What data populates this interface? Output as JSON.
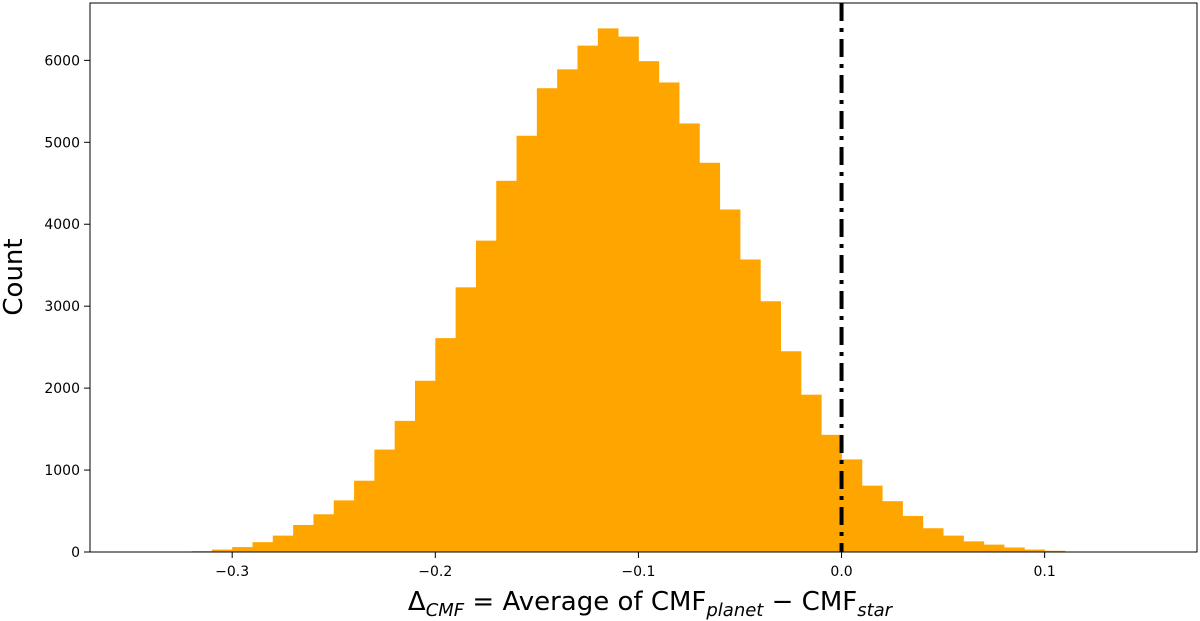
{
  "chart_data": {
    "type": "bar",
    "title": "",
    "xlabel": {
      "main": "Δ",
      "main_sub": "CMF",
      "mid": " = Average of CMF",
      "mid_sub": "planet",
      "dash": " −  CMF",
      "end_sub": "star"
    },
    "ylabel": "Count",
    "xlim": [
      -0.37,
      0.175
    ],
    "ylim": [
      0,
      6700
    ],
    "bar_color": "#ffa500",
    "bin_width": 0.01,
    "bin_starts": [
      -0.33,
      -0.32,
      -0.31,
      -0.3,
      -0.29,
      -0.28,
      -0.27,
      -0.26,
      -0.25,
      -0.24,
      -0.23,
      -0.22,
      -0.21,
      -0.2,
      -0.19,
      -0.18,
      -0.17,
      -0.16,
      -0.15,
      -0.14,
      -0.13,
      -0.12,
      -0.11,
      -0.1,
      -0.09,
      -0.08,
      -0.07,
      -0.06,
      -0.05,
      -0.04,
      -0.03,
      -0.02,
      -0.01,
      0.0,
      0.01,
      0.02,
      0.03,
      0.04,
      0.05,
      0.06,
      0.07,
      0.08,
      0.09,
      0.1,
      0.11
    ],
    "values": [
      5,
      10,
      30,
      60,
      120,
      200,
      330,
      460,
      630,
      870,
      1250,
      1600,
      2090,
      2610,
      3230,
      3800,
      4530,
      5080,
      5660,
      5890,
      6180,
      6390,
      6290,
      5990,
      5730,
      5230,
      4750,
      4180,
      3570,
      3060,
      2450,
      1920,
      1430,
      1130,
      810,
      620,
      440,
      290,
      200,
      130,
      90,
      55,
      30,
      15,
      5
    ],
    "x_ticks": [
      -0.3,
      -0.2,
      -0.1,
      0.0,
      0.1
    ],
    "x_tick_labels": [
      "−0.3",
      "−0.2",
      "−0.1",
      "0.0",
      "0.1"
    ],
    "y_ticks": [
      0,
      1000,
      2000,
      3000,
      4000,
      5000,
      6000
    ],
    "y_tick_labels": [
      "0",
      "1000",
      "2000",
      "3000",
      "4000",
      "5000",
      "6000"
    ],
    "vline": {
      "x": 0.0,
      "style": "dash-dot",
      "color": "#000000"
    },
    "grid": false,
    "legend": "none"
  }
}
